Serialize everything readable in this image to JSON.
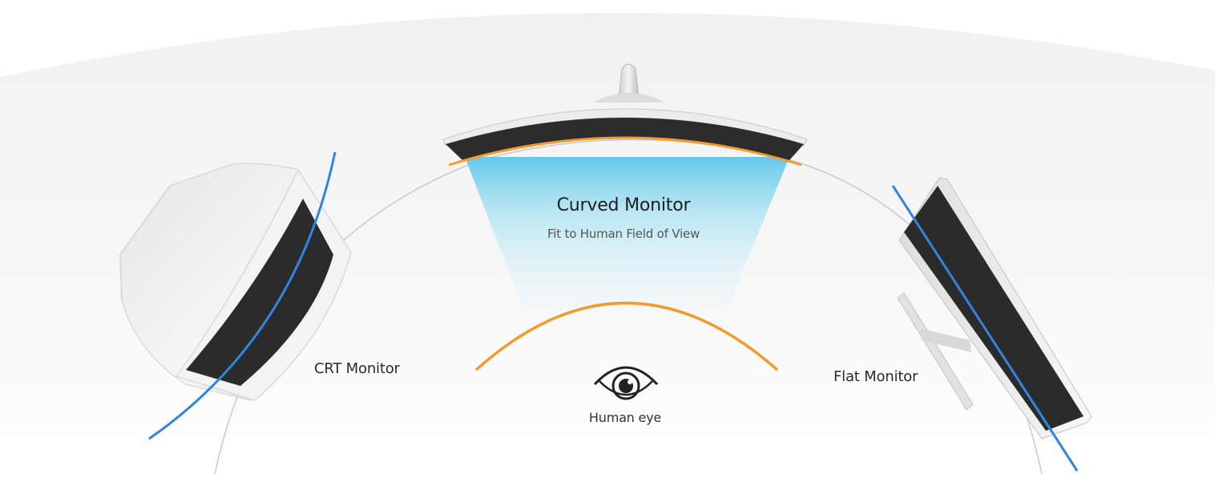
{
  "labels": {
    "curved_monitor": "Curved Monitor",
    "curved_subtitle": "Fit to Human Field of View",
    "crt_monitor": "CRT Monitor",
    "flat_monitor": "Flat Monitor",
    "human_eye": "Human eye"
  },
  "icons": {
    "eye": "eye-icon"
  },
  "colors": {
    "field_of_view_blue": "#8fd8ef",
    "curvature_orange": "#f29a2e",
    "curve_line_blue": "#2f86e0",
    "screen_dark": "#2b2b2b",
    "bezel_white": "#eeeeee"
  }
}
